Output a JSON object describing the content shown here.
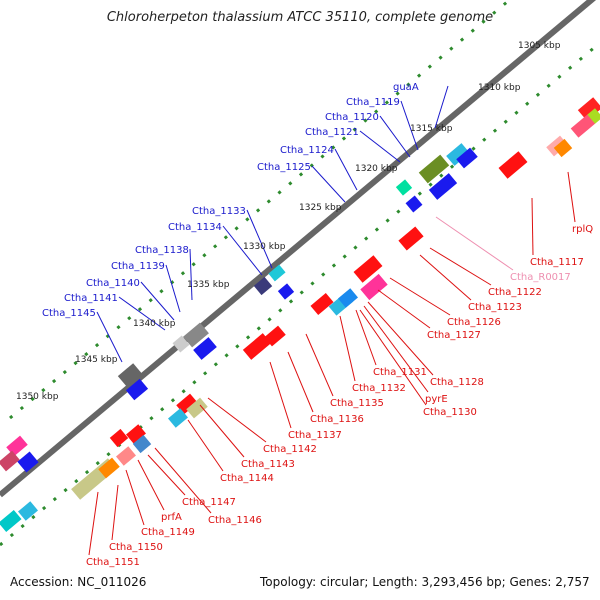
{
  "title": "Chloroherpeton thalassium ATCC 35110, complete genome",
  "accession": "Accession: NC_011026",
  "topology": "Topology: circular; Length: 3,293,456 bp; Genes: 2,757",
  "colors": {
    "forward_label": "#1a1acc",
    "reverse_label": "#dd1111",
    "rna_label": "#ee8fb0",
    "backbone": "#666666",
    "ticks": "#2e8b2e"
  },
  "scale_labels": [
    "1305 kbp",
    "1310 kbp",
    "1315 kbp",
    "1320 kbp",
    "1325 kbp",
    "1330 kbp",
    "1335 kbp",
    "1340 kbp",
    "1345 kbp",
    "1350 kbp"
  ],
  "forward_genes": [
    "guaA",
    "Ctha_1119",
    "Ctha_1120",
    "Ctha_1121",
    "Ctha_1124",
    "Ctha_1125",
    "Ctha_1133",
    "Ctha_1134",
    "Ctha_1138",
    "Ctha_1139",
    "Ctha_1140",
    "Ctha_1141",
    "Ctha_1145"
  ],
  "reverse_genes": [
    "rplQ",
    "Ctha_1117",
    "Ctha_1122",
    "Ctha_1123",
    "Ctha_1126",
    "Ctha_1127",
    "Ctha_1128",
    "Ctha_1130",
    "pyrE",
    "Ctha_1131",
    "Ctha_1132",
    "Ctha_1135",
    "Ctha_1136",
    "Ctha_1137",
    "Ctha_1142",
    "Ctha_1143",
    "Ctha_1144",
    "Ctha_1146",
    "Ctha_1147",
    "prfA",
    "Ctha_1149",
    "Ctha_1150",
    "Ctha_1151"
  ],
  "rna_genes": [
    "Ctha_R0017"
  ]
}
